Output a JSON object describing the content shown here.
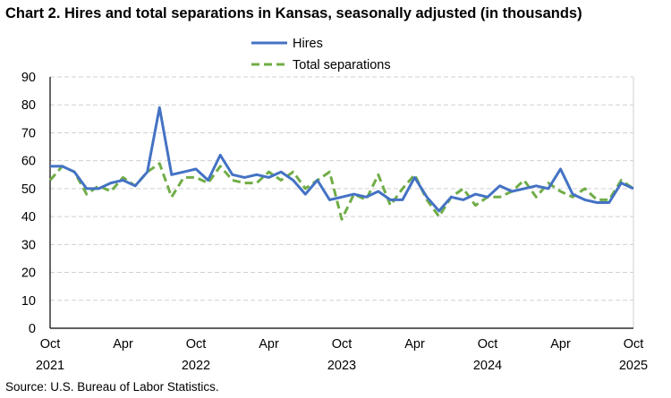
{
  "chart_data": {
    "type": "line",
    "title": "Chart 2. Hires and total separations in Kansas, seasonally adjusted (in thousands)",
    "source": "Source: U.S. Bureau of Labor Statistics.",
    "xlabel": "",
    "ylabel": "",
    "ylim": [
      0,
      90
    ],
    "yticks": [
      0,
      10,
      20,
      30,
      40,
      50,
      60,
      70,
      80,
      90
    ],
    "grid": true,
    "legend_position": "top-center",
    "x_start": "Oct 2021",
    "x_end": "Oct 2025",
    "xtick_labels": [
      {
        "month_index": 0,
        "label": "Oct",
        "year": "2021"
      },
      {
        "month_index": 6,
        "label": "Apr",
        "year": ""
      },
      {
        "month_index": 12,
        "label": "Oct",
        "year": "2022"
      },
      {
        "month_index": 18,
        "label": "Apr",
        "year": ""
      },
      {
        "month_index": 24,
        "label": "Oct",
        "year": "2023"
      },
      {
        "month_index": 30,
        "label": "Apr",
        "year": ""
      },
      {
        "month_index": 36,
        "label": "Oct",
        "year": "2024"
      },
      {
        "month_index": 42,
        "label": "Apr",
        "year": ""
      },
      {
        "month_index": 48,
        "label": "Oct",
        "year": "2025"
      }
    ],
    "series": [
      {
        "name": "Hires",
        "color": "#4472C4",
        "dashed": false,
        "values": [
          58,
          58,
          56,
          50,
          50,
          52,
          53,
          51,
          56,
          79,
          55,
          56,
          57,
          53,
          62,
          55,
          54,
          55,
          54,
          56,
          53,
          48,
          53,
          46,
          47,
          48,
          47,
          49,
          46,
          46,
          54,
          47,
          42,
          47,
          46,
          48,
          47,
          51,
          49,
          50,
          51,
          50,
          57,
          48,
          46,
          45,
          45,
          52,
          50
        ]
      },
      {
        "name": "Total separations",
        "color": "#70AD47",
        "dashed": true,
        "values": [
          53,
          58,
          56,
          48,
          51,
          49,
          54,
          51,
          56,
          59,
          47,
          54,
          54,
          52,
          58,
          53,
          52,
          52,
          56,
          53,
          56,
          50,
          53,
          56,
          39,
          48,
          46,
          55,
          44,
          50,
          55,
          46,
          40,
          47,
          50,
          44,
          47,
          47,
          49,
          53,
          47,
          52,
          49,
          47,
          50,
          46,
          46,
          53,
          50
        ]
      }
    ]
  }
}
